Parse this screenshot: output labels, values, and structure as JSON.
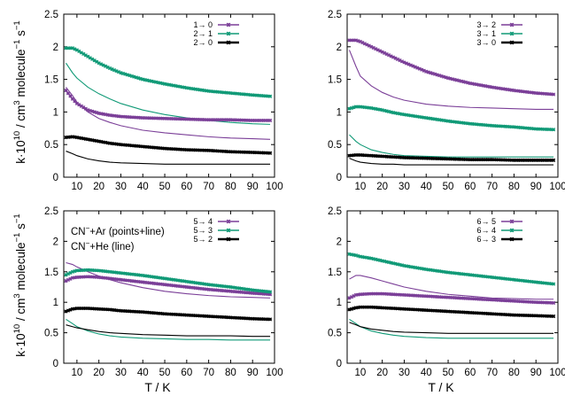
{
  "figure": {
    "ylabel_parts": {
      "base": "k·10",
      "exp": "10",
      "mid": " / cm",
      "exp3": "3",
      "mid2": " molecule",
      "expm1": "−1",
      "mid3": " s",
      "expm1b": "−1"
    },
    "xlabel": "T / K",
    "annotation_lines": [
      {
        "prefix": "CN",
        "sup": "−",
        "suffix": "+Ar (points+line)"
      },
      {
        "prefix": "CN",
        "sup": "−",
        "suffix": "+He (line)"
      }
    ]
  },
  "colors": {
    "purple": "#7b3f98",
    "green": "#119a77",
    "black": "#000000"
  },
  "chart_data": [
    {
      "type": "line",
      "panel": "top-left",
      "xlim": [
        4,
        100
      ],
      "ylim": [
        0,
        2.5
      ],
      "xticks": [
        "10",
        "20",
        "30",
        "40",
        "50",
        "60",
        "70",
        "80",
        "90",
        "100"
      ],
      "yticks": [
        "0",
        "0.5",
        "1",
        "1.5",
        "2",
        "2.5"
      ],
      "legend": [
        "1→ 0",
        "2→ 1",
        "2→ 0"
      ],
      "x": [
        5,
        8,
        10,
        15,
        20,
        25,
        30,
        40,
        50,
        60,
        70,
        80,
        90,
        98
      ],
      "series": [
        {
          "name": "1→ 0",
          "style": "points+line",
          "color": "purple",
          "values": [
            1.33,
            1.2,
            1.13,
            1.03,
            0.98,
            0.95,
            0.93,
            0.91,
            0.9,
            0.89,
            0.88,
            0.88,
            0.87,
            0.87
          ]
        },
        {
          "name": "2→ 1",
          "style": "points+line",
          "color": "green",
          "values": [
            1.98,
            1.98,
            1.95,
            1.85,
            1.75,
            1.67,
            1.6,
            1.5,
            1.43,
            1.37,
            1.32,
            1.29,
            1.26,
            1.24
          ]
        },
        {
          "name": "2→ 0",
          "style": "points+line",
          "color": "black",
          "values": [
            0.61,
            0.62,
            0.61,
            0.58,
            0.55,
            0.52,
            0.5,
            0.47,
            0.44,
            0.42,
            0.41,
            0.39,
            0.38,
            0.37
          ]
        },
        {
          "style": "line",
          "color": "purple",
          "values": [
            1.38,
            1.25,
            1.15,
            1.0,
            0.9,
            0.84,
            0.79,
            0.72,
            0.68,
            0.65,
            0.62,
            0.6,
            0.59,
            0.58
          ]
        },
        {
          "style": "line",
          "color": "green",
          "values": [
            1.75,
            1.6,
            1.52,
            1.38,
            1.28,
            1.2,
            1.13,
            1.03,
            0.96,
            0.91,
            0.87,
            0.84,
            0.82,
            0.81
          ]
        },
        {
          "style": "line",
          "color": "black",
          "values": [
            0.4,
            0.36,
            0.33,
            0.28,
            0.25,
            0.23,
            0.22,
            0.21,
            0.2,
            0.2,
            0.2,
            0.2,
            0.2,
            0.2
          ]
        }
      ]
    },
    {
      "type": "line",
      "panel": "top-right",
      "xlim": [
        4,
        100
      ],
      "ylim": [
        0,
        2.5
      ],
      "xticks": [
        "10",
        "20",
        "30",
        "40",
        "50",
        "60",
        "70",
        "80",
        "90",
        "100"
      ],
      "yticks": [
        "0",
        "0.5",
        "1",
        "1.5",
        "2",
        "2.5"
      ],
      "legend": [
        "3→ 2",
        "3→ 1",
        "3→ 0"
      ],
      "x": [
        5,
        8,
        10,
        15,
        20,
        25,
        30,
        40,
        50,
        60,
        70,
        80,
        90,
        98
      ],
      "series": [
        {
          "name": "3→ 2",
          "style": "points+line",
          "color": "purple",
          "values": [
            2.1,
            2.1,
            2.08,
            2.0,
            1.92,
            1.84,
            1.76,
            1.62,
            1.52,
            1.44,
            1.38,
            1.33,
            1.29,
            1.27
          ]
        },
        {
          "name": "3→ 1",
          "style": "points+line",
          "color": "green",
          "values": [
            1.05,
            1.08,
            1.08,
            1.06,
            1.03,
            0.99,
            0.96,
            0.91,
            0.86,
            0.82,
            0.79,
            0.77,
            0.74,
            0.73
          ]
        },
        {
          "name": "3→ 0",
          "style": "points+line",
          "color": "black",
          "values": [
            0.33,
            0.34,
            0.34,
            0.33,
            0.32,
            0.31,
            0.3,
            0.29,
            0.28,
            0.27,
            0.27,
            0.26,
            0.26,
            0.26
          ]
        },
        {
          "style": "line",
          "color": "purple",
          "values": [
            1.95,
            1.7,
            1.55,
            1.4,
            1.3,
            1.23,
            1.18,
            1.12,
            1.09,
            1.07,
            1.06,
            1.05,
            1.04,
            1.04
          ]
        },
        {
          "style": "line",
          "color": "green",
          "values": [
            0.65,
            0.55,
            0.5,
            0.42,
            0.38,
            0.35,
            0.33,
            0.32,
            0.31,
            0.31,
            0.31,
            0.31,
            0.31,
            0.31
          ]
        },
        {
          "style": "line",
          "color": "black",
          "values": [
            0.29,
            0.25,
            0.23,
            0.21,
            0.2,
            0.2,
            0.19,
            0.19,
            0.19,
            0.19,
            0.19,
            0.19,
            0.19,
            0.19
          ]
        }
      ]
    },
    {
      "type": "line",
      "panel": "bottom-left",
      "xlim": [
        4,
        100
      ],
      "ylim": [
        0,
        2.5
      ],
      "xticks": [
        "10",
        "20",
        "30",
        "40",
        "50",
        "60",
        "70",
        "80",
        "90",
        "100"
      ],
      "yticks": [
        "0",
        "0.5",
        "1",
        "1.5",
        "2",
        "2.5"
      ],
      "legend": [
        "5→ 4",
        "5→ 3",
        "5→ 2"
      ],
      "x": [
        5,
        8,
        10,
        15,
        20,
        25,
        30,
        40,
        50,
        60,
        70,
        80,
        90,
        98
      ],
      "series": [
        {
          "name": "5→ 4",
          "style": "points+line",
          "color": "purple",
          "values": [
            1.35,
            1.4,
            1.41,
            1.42,
            1.41,
            1.39,
            1.37,
            1.33,
            1.29,
            1.25,
            1.21,
            1.18,
            1.15,
            1.13
          ]
        },
        {
          "name": "5→ 3",
          "style": "points+line",
          "color": "green",
          "values": [
            1.45,
            1.5,
            1.52,
            1.53,
            1.52,
            1.5,
            1.48,
            1.44,
            1.39,
            1.34,
            1.29,
            1.25,
            1.2,
            1.17
          ]
        },
        {
          "name": "5→ 2",
          "style": "points+line",
          "color": "black",
          "values": [
            0.85,
            0.89,
            0.9,
            0.9,
            0.89,
            0.88,
            0.86,
            0.84,
            0.81,
            0.79,
            0.77,
            0.75,
            0.73,
            0.72
          ]
        },
        {
          "style": "line",
          "color": "purple",
          "values": [
            1.65,
            1.62,
            1.58,
            1.5,
            1.43,
            1.37,
            1.32,
            1.24,
            1.18,
            1.14,
            1.11,
            1.09,
            1.08,
            1.07
          ]
        },
        {
          "style": "line",
          "color": "green",
          "values": [
            0.72,
            0.65,
            0.6,
            0.53,
            0.48,
            0.45,
            0.43,
            0.41,
            0.4,
            0.39,
            0.39,
            0.38,
            0.38,
            0.38
          ]
        },
        {
          "style": "line",
          "color": "black",
          "values": [
            0.63,
            0.6,
            0.58,
            0.55,
            0.52,
            0.5,
            0.49,
            0.47,
            0.46,
            0.45,
            0.45,
            0.45,
            0.44,
            0.44
          ]
        }
      ]
    },
    {
      "type": "line",
      "panel": "bottom-right",
      "xlim": [
        4,
        100
      ],
      "ylim": [
        0,
        2.5
      ],
      "xticks": [
        "10",
        "20",
        "30",
        "40",
        "50",
        "60",
        "70",
        "80",
        "90",
        "100"
      ],
      "yticks": [
        "0",
        "0.5",
        "1",
        "1.5",
        "2",
        "2.5"
      ],
      "legend": [
        "6→ 5",
        "6→ 4",
        "6→ 3"
      ],
      "x": [
        5,
        8,
        10,
        15,
        20,
        25,
        30,
        40,
        50,
        60,
        70,
        80,
        90,
        98
      ],
      "series": [
        {
          "name": "6→ 5",
          "style": "points+line",
          "color": "purple",
          "values": [
            1.07,
            1.12,
            1.13,
            1.14,
            1.14,
            1.13,
            1.12,
            1.1,
            1.08,
            1.06,
            1.04,
            1.02,
            1.0,
            0.99
          ]
        },
        {
          "name": "6→ 4",
          "style": "points+line",
          "color": "green",
          "values": [
            1.79,
            1.77,
            1.75,
            1.72,
            1.68,
            1.64,
            1.6,
            1.54,
            1.49,
            1.45,
            1.41,
            1.37,
            1.33,
            1.3
          ]
        },
        {
          "name": "6→ 3",
          "style": "points+line",
          "color": "black",
          "values": [
            0.88,
            0.91,
            0.92,
            0.92,
            0.91,
            0.9,
            0.89,
            0.87,
            0.85,
            0.83,
            0.81,
            0.79,
            0.78,
            0.77
          ]
        },
        {
          "style": "line",
          "color": "purple",
          "values": [
            1.38,
            1.44,
            1.44,
            1.4,
            1.35,
            1.3,
            1.25,
            1.18,
            1.13,
            1.1,
            1.07,
            1.06,
            1.05,
            1.05
          ]
        },
        {
          "style": "line",
          "color": "green",
          "values": [
            0.72,
            0.65,
            0.6,
            0.53,
            0.49,
            0.46,
            0.44,
            0.42,
            0.41,
            0.41,
            0.41,
            0.41,
            0.41,
            0.41
          ]
        },
        {
          "style": "line",
          "color": "black",
          "values": [
            0.67,
            0.63,
            0.6,
            0.56,
            0.54,
            0.52,
            0.51,
            0.5,
            0.49,
            0.49,
            0.49,
            0.49,
            0.49,
            0.49
          ]
        }
      ]
    }
  ]
}
